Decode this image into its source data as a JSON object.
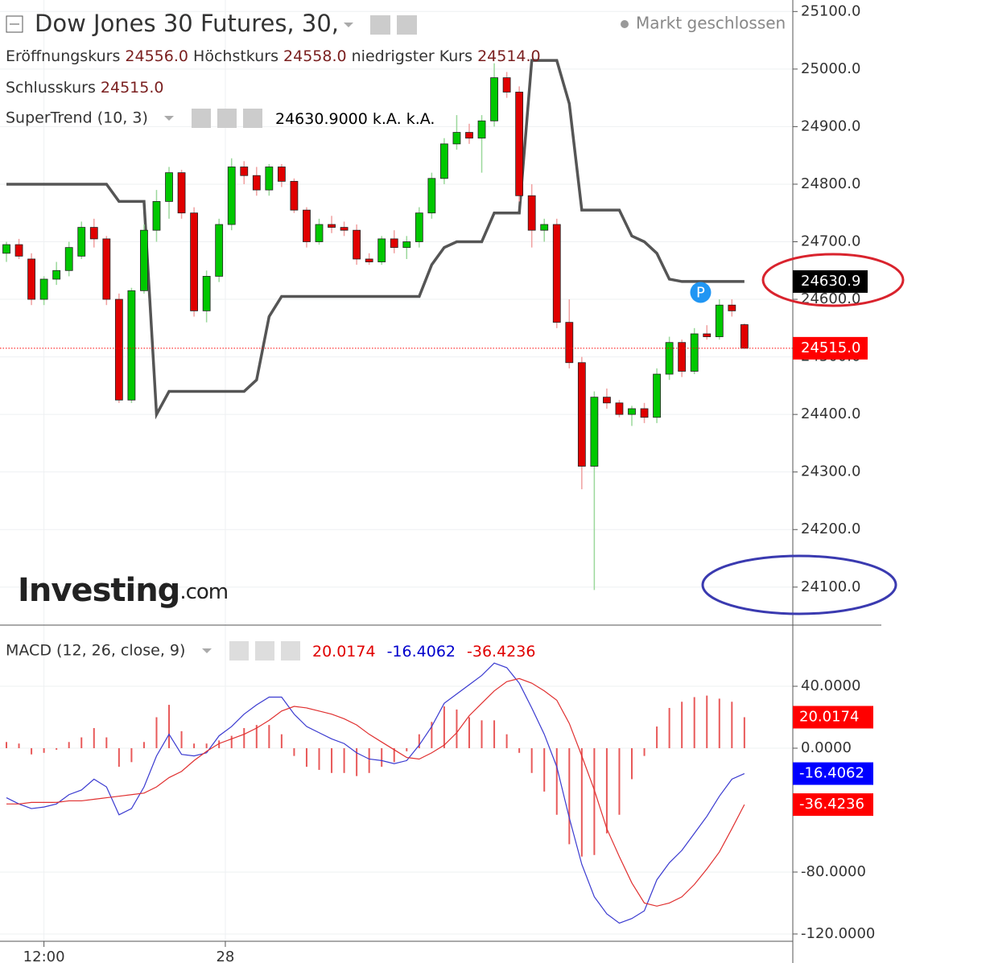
{
  "chart_data": [
    {
      "type": "candlestick",
      "title": "Dow Jones 30 Futures, 30,",
      "status": "Markt geschlossen",
      "legend": [
        {
          "label": "Eröffnungskurs",
          "value": "24556.0"
        },
        {
          "label": "Höchstkurs",
          "value": "24558.0"
        },
        {
          "label": "niedrigster Kurs",
          "value": "24514.0"
        },
        {
          "label": "Schlusskurs",
          "value": "24515.0"
        }
      ],
      "indicator": {
        "name": "SuperTrend (10, 3)",
        "value": "24630.9000",
        "extra": [
          "k.A.",
          "k.A."
        ]
      },
      "watermark": "Investing",
      "watermark_suffix": ".com",
      "marker": {
        "label": "P",
        "index": 55.5,
        "price": 24612
      },
      "xlim": [
        -0.515,
        62.87
      ],
      "xticks": [
        {
          "value": 3,
          "label": "12:00"
        },
        {
          "value": 17.5,
          "label": "28"
        }
      ],
      "ylim": [
        24034,
        25120
      ],
      "yticks": [
        {
          "value": 24100,
          "label": "24100.0"
        },
        {
          "value": 24200,
          "label": "24200.0"
        },
        {
          "value": 24300,
          "label": "24300.0"
        },
        {
          "value": 24400,
          "label": "24400.0"
        },
        {
          "value": 24500,
          "label": "24500.0"
        },
        {
          "value": 24600,
          "label": "24600.0"
        },
        {
          "value": 24700,
          "label": "24700.0"
        },
        {
          "value": 24800,
          "label": "24800.0"
        },
        {
          "value": 24900,
          "label": "24900.0"
        },
        {
          "value": 25000,
          "label": "25000.0"
        },
        {
          "value": 25100,
          "label": "25100.0"
        }
      ],
      "up_color": "#00c800",
      "down_color": "#e00000",
      "ohlc": [
        [
          24680,
          24700,
          24665,
          24695
        ],
        [
          24695,
          24705,
          24670,
          24675
        ],
        [
          24670,
          24680,
          24590,
          24600
        ],
        [
          24600,
          24640,
          24590,
          24635
        ],
        [
          24635,
          24665,
          24625,
          24650
        ],
        [
          24650,
          24700,
          24640,
          24690
        ],
        [
          24675,
          24735,
          24670,
          24725
        ],
        [
          24725,
          24740,
          24690,
          24705
        ],
        [
          24705,
          24710,
          24590,
          24600
        ],
        [
          24600,
          24610,
          24420,
          24425
        ],
        [
          24425,
          24620,
          24420,
          24615
        ],
        [
          24615,
          24730,
          24610,
          24720
        ],
        [
          24720,
          24790,
          24700,
          24770
        ],
        [
          24770,
          24830,
          24740,
          24820
        ],
        [
          24820,
          24825,
          24740,
          24750
        ],
        [
          24750,
          24760,
          24570,
          24580
        ],
        [
          24580,
          24650,
          24560,
          24640
        ],
        [
          24640,
          24740,
          24630,
          24730
        ],
        [
          24730,
          24845,
          24720,
          24830
        ],
        [
          24830,
          24840,
          24800,
          24815
        ],
        [
          24815,
          24830,
          24780,
          24790
        ],
        [
          24790,
          24835,
          24780,
          24830
        ],
        [
          24830,
          24835,
          24795,
          24805
        ],
        [
          24805,
          24810,
          24750,
          24755
        ],
        [
          24755,
          24760,
          24690,
          24700
        ],
        [
          24700,
          24740,
          24695,
          24730
        ],
        [
          24730,
          24745,
          24715,
          24725
        ],
        [
          24725,
          24735,
          24710,
          24720
        ],
        [
          24720,
          24730,
          24660,
          24670
        ],
        [
          24670,
          24680,
          24660,
          24665
        ],
        [
          24665,
          24710,
          24660,
          24705
        ],
        [
          24705,
          24720,
          24680,
          24690
        ],
        [
          24690,
          24710,
          24670,
          24700
        ],
        [
          24700,
          24760,
          24690,
          24750
        ],
        [
          24750,
          24820,
          24740,
          24810
        ],
        [
          24810,
          24880,
          24800,
          24870
        ],
        [
          24870,
          24920,
          24860,
          24890
        ],
        [
          24890,
          24905,
          24870,
          24880
        ],
        [
          24880,
          24920,
          24820,
          24910
        ],
        [
          24910,
          25010,
          24900,
          24985
        ],
        [
          24985,
          24995,
          24950,
          24960
        ],
        [
          24960,
          24970,
          24770,
          24780
        ],
        [
          24780,
          24800,
          24690,
          24720
        ],
        [
          24720,
          24740,
          24700,
          24730
        ],
        [
          24730,
          24740,
          24550,
          24560
        ],
        [
          24560,
          24600,
          24480,
          24490
        ],
        [
          24490,
          24500,
          24270,
          24310
        ],
        [
          24310,
          24440,
          24095,
          24430
        ],
        [
          24430,
          24445,
          24410,
          24420
        ],
        [
          24420,
          24425,
          24395,
          24400
        ],
        [
          24400,
          24415,
          24380,
          24410
        ],
        [
          24410,
          24420,
          24385,
          24395
        ],
        [
          24395,
          24480,
          24385,
          24470
        ],
        [
          24470,
          24535,
          24460,
          24525
        ],
        [
          24525,
          24530,
          24465,
          24475
        ],
        [
          24475,
          24550,
          24470,
          24540
        ],
        [
          24540,
          24555,
          24530,
          24535
        ],
        [
          24535,
          24600,
          24530,
          24590
        ],
        [
          24590,
          24600,
          24570,
          24580
        ],
        [
          24556,
          24558,
          24514,
          24515
        ]
      ],
      "supertrend": {
        "color": "#555555",
        "values": [
          24800,
          24800,
          24800,
          24800,
          24800,
          24800,
          24800,
          24800,
          24800,
          24770,
          24770,
          24770,
          24400,
          24440,
          24440,
          24440,
          24440,
          24440,
          24440,
          24440,
          24460,
          24570,
          24605,
          24605,
          24605,
          24605,
          24605,
          24605,
          24605,
          24605,
          24605,
          24605,
          24605,
          24605,
          24660,
          24690,
          24700,
          24700,
          24700,
          24750,
          24750,
          24750,
          25015,
          25015,
          25015,
          24940,
          24755,
          24755,
          24755,
          24755,
          24710,
          24700,
          24680,
          24635,
          24630.9,
          24630.9,
          24630.9,
          24630.9,
          24630.9,
          24630.9
        ]
      },
      "price_markers": [
        {
          "value": 24630.9,
          "label": "24630.9",
          "color": "#000000"
        },
        {
          "value": 24515,
          "label": "24515.0",
          "color": "#ff0000"
        }
      ]
    },
    {
      "type": "macd",
      "title": "MACD (12, 26, close, 9)",
      "legend": [
        {
          "value": "20.0174",
          "color": "#e00000"
        },
        {
          "value": "-16.4062",
          "color": "#0000cc"
        },
        {
          "value": "-36.4236",
          "color": "#e00000"
        }
      ],
      "ylim": [
        -124.7,
        79.5
      ],
      "yticks": [
        {
          "value": 40,
          "label": "40.0000"
        },
        {
          "value": 0,
          "label": "0.0000"
        },
        {
          "value": -80,
          "label": "-80.0000"
        },
        {
          "value": -120,
          "label": "-120.0000"
        }
      ],
      "series": [
        {
          "name": "Histogram",
          "color": "#e85a5a",
          "values": [
            4,
            3,
            -4,
            -3,
            -1,
            4,
            7,
            13,
            7,
            -12,
            -9,
            4,
            20,
            28,
            11,
            3,
            3,
            5,
            8,
            13,
            15,
            15,
            9,
            -5,
            -12,
            -14,
            -16,
            -16,
            -18,
            -16,
            -12,
            -9,
            -2,
            9,
            17,
            27,
            25,
            20,
            18,
            18,
            9,
            -3,
            -16,
            -28,
            -43,
            -62,
            -70,
            -69,
            -55,
            -43,
            -20,
            -5,
            14,
            26,
            30,
            33,
            34,
            32,
            30,
            20.0174
          ]
        },
        {
          "name": "MACD",
          "color": "#3a3ad0",
          "values": [
            -32,
            -36,
            -39,
            -38,
            -36,
            -30,
            -27,
            -20,
            -25,
            -43,
            -39,
            -25,
            -5,
            9,
            -4,
            -5,
            -3,
            8,
            14,
            22,
            28,
            33,
            33,
            22,
            14,
            10,
            6,
            3,
            -3,
            -7,
            -8,
            -10,
            -8,
            2,
            14,
            29,
            35,
            41,
            47,
            55,
            52,
            42,
            26,
            9,
            -12,
            -45,
            -75,
            -96,
            -107,
            -113,
            -110,
            -105,
            -85,
            -74,
            -66,
            -55,
            -44,
            -31,
            -20,
            -16.4062
          ]
        },
        {
          "name": "Signal",
          "color": "#e03030",
          "values": [
            -36,
            -36,
            -35,
            -35,
            -35,
            -34,
            -34,
            -33,
            -32,
            -31,
            -30,
            -29,
            -25,
            -19,
            -15,
            -8,
            -2,
            3,
            6,
            9,
            13,
            18,
            24,
            27,
            26,
            24,
            22,
            19,
            15,
            9,
            4,
            -1,
            -6,
            -7,
            -3,
            2,
            10,
            21,
            29,
            37,
            43,
            45,
            42,
            37,
            31,
            16,
            -5,
            -27,
            -52,
            -70,
            -87,
            -100,
            -102,
            -100,
            -96,
            -88,
            -78,
            -67,
            -52,
            -36.4236
          ]
        }
      ],
      "price_markers": [
        {
          "value": 20.0174,
          "label": "20.0174",
          "color": "#ff0000"
        },
        {
          "value": -16.4062,
          "label": "-16.4062",
          "color": "#0000ff"
        },
        {
          "value": -36.4236,
          "label": "-36.4236",
          "color": "#ff0000"
        }
      ]
    }
  ]
}
